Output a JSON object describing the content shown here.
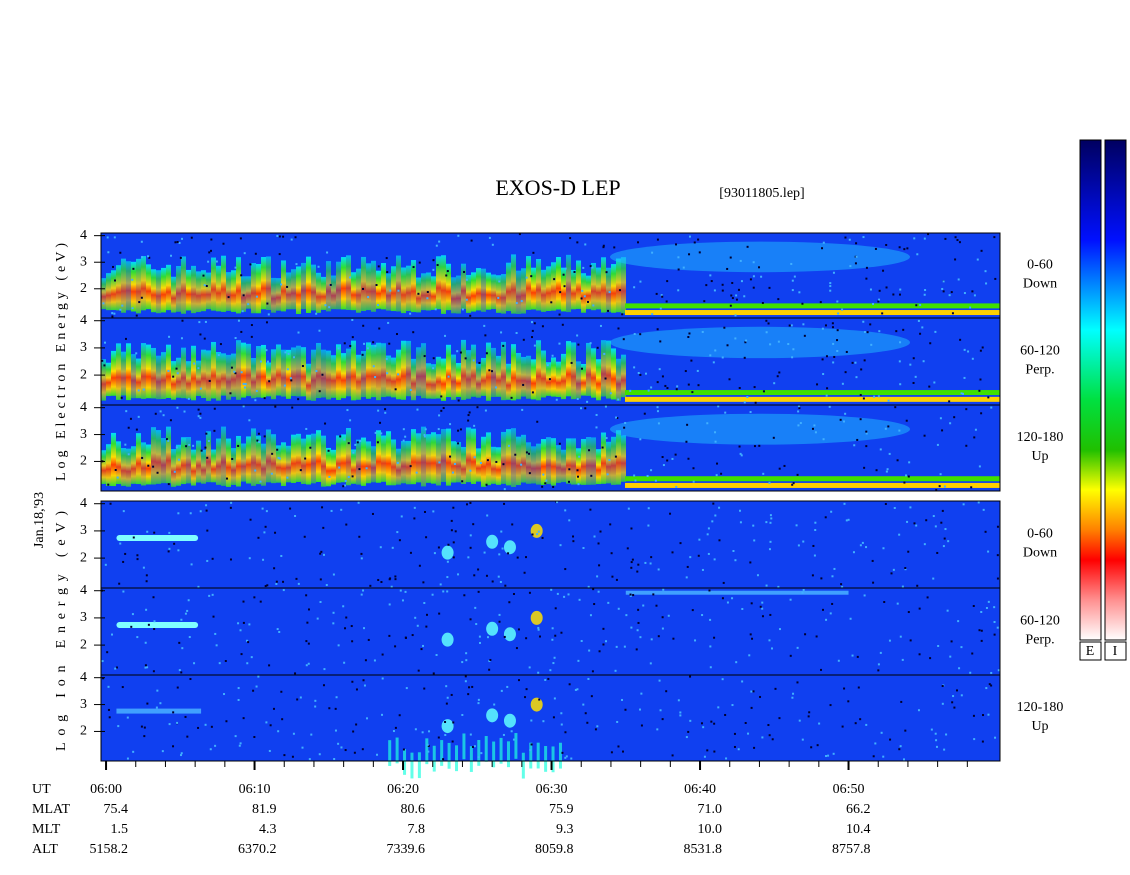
{
  "chart_data": {
    "type": "spectrogram",
    "title": "EXOS-D LEP",
    "subtitle": "[93011805.lep]",
    "date_label": "Jan.18,'93",
    "ylim": [
      0.9,
      4.1
    ],
    "yticks": [
      2,
      3,
      4
    ],
    "xlim": [
      -0.34,
      60.2
    ],
    "xticks": [
      {
        "value": 0,
        "label": "06:00"
      },
      {
        "value": 10,
        "label": "06:10"
      },
      {
        "value": 20,
        "label": "06:20"
      },
      {
        "value": 30,
        "label": "06:30"
      },
      {
        "value": 40,
        "label": "06:40"
      },
      {
        "value": 50,
        "label": "06:50"
      }
    ],
    "xminor": [
      2,
      4,
      6,
      8,
      12,
      14,
      16,
      18,
      22,
      24,
      26,
      28,
      32,
      34,
      36,
      38,
      42,
      44,
      46,
      48,
      52,
      54,
      56,
      58
    ],
    "groups": [
      {
        "ylabel": "Log Electron Energy (eV)",
        "panels": [
          {
            "label_lines": [
              "0-60",
              "Down"
            ]
          },
          {
            "label_lines": [
              "60-120",
              "Perp."
            ]
          },
          {
            "label_lines": [
              "120-180",
              "Up"
            ]
          }
        ]
      },
      {
        "ylabel": "Log Ion Energy (eV)",
        "panels": [
          {
            "label_lines": [
              "0-60",
              "Down"
            ]
          },
          {
            "label_lines": [
              "60-120",
              "Perp."
            ]
          },
          {
            "label_lines": [
              "120-180",
              "Up"
            ]
          }
        ]
      }
    ],
    "ephemeris": {
      "rows": [
        {
          "name": "UT"
        },
        {
          "name": "MLAT",
          "values": [
            "75.4",
            "81.9",
            "80.6",
            "75.9",
            "71.0",
            "66.2"
          ]
        },
        {
          "name": "MLT",
          "values": [
            "1.5",
            "4.3",
            "7.8",
            "9.3",
            "10.0",
            "10.4"
          ]
        },
        {
          "name": "ALT",
          "values": [
            "5158.2",
            "6370.2",
            "7339.6",
            "8059.8",
            "8531.8",
            "8757.8"
          ]
        }
      ]
    },
    "colorbar_labels": [
      "E",
      "I"
    ]
  }
}
